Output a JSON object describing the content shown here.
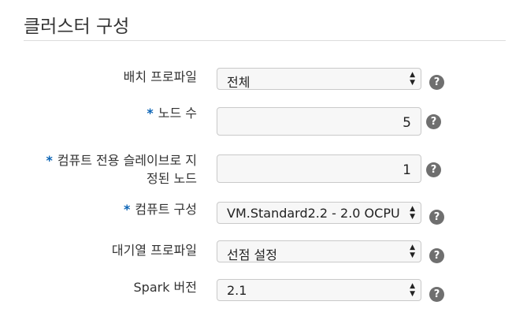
{
  "title": "클러스터 구성",
  "fields": [
    {
      "label": "배치 프로파일",
      "value": "전체"
    },
    {
      "label": "노드 수",
      "value": "5",
      "required_mark": "*"
    },
    {
      "label_line1": "컴퓨트 전용 슬레이브로 지",
      "label_line2": "정된 노드",
      "value": "1",
      "required_mark": "*"
    },
    {
      "label": "컴퓨트 구성",
      "value": "VM.Standard2.2 - 2.0 OCPU",
      "required_mark": "*"
    },
    {
      "label": "대기열 프로파일",
      "value": "선점 설정"
    },
    {
      "label": "Spark 버전",
      "value": "2.1"
    }
  ],
  "icons": {
    "help": "help-icon",
    "select_arrows": "updown-arrows-icon"
  },
  "help_text": "?",
  "colors": {
    "required": "#0a63b5",
    "help_bg": "#6f6f6f",
    "field_bg": "#f7f7f7",
    "field_border": "#c9c9c9"
  }
}
